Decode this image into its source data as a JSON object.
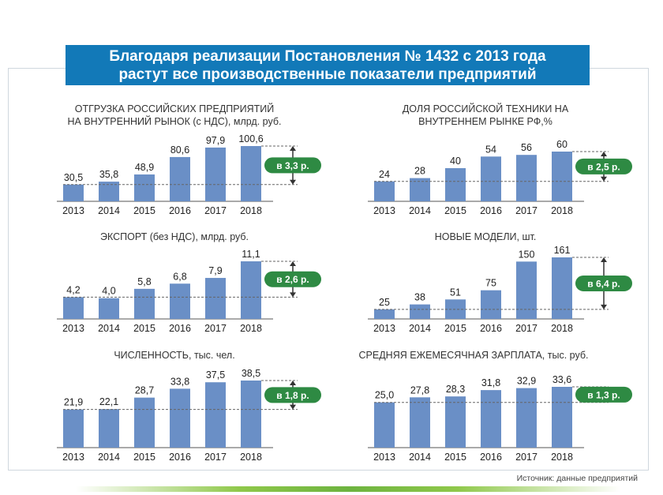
{
  "header": {
    "line1": "Благодаря реализации Постановления № 1432 с 2013 года",
    "line2": "растут все производственные показатели предприятий"
  },
  "source": "Источник: данные предприятий",
  "colors": {
    "bar": "#6a8fc6",
    "badge": "#2e8a43",
    "banner": "#1279b8"
  },
  "chart_data": [
    {
      "type": "bar",
      "title_line1": "ОТГРУЗКА РОССИЙСКИХ ПРЕДПРИЯТИЙ",
      "title_line2": "НА ВНУТРЕННИЙ РЫНОК (с НДС), млрд. руб.",
      "categories": [
        "2013",
        "2014",
        "2015",
        "2016",
        "2017",
        "2018"
      ],
      "values": [
        30.5,
        35.8,
        48.9,
        80.6,
        97.9,
        100.6
      ],
      "labels": [
        "30,5",
        "35,8",
        "48,9",
        "80,6",
        "97,9",
        "100,6"
      ],
      "ylim": [
        0,
        100.6
      ],
      "growth": "в 3,3 р."
    },
    {
      "type": "bar",
      "title_line1": "ДОЛЯ РОССИЙСКОЙ ТЕХНИКИ НА",
      "title_line2": "ВНУТРЕННЕМ РЫНКЕ РФ,%",
      "categories": [
        "2013",
        "2014",
        "2015",
        "2016",
        "2017",
        "2018"
      ],
      "values": [
        24,
        28,
        40,
        54,
        56,
        60
      ],
      "labels": [
        "24",
        "28",
        "40",
        "54",
        "56",
        "60"
      ],
      "ylim": [
        0,
        60
      ],
      "growth": "в 2,5 р."
    },
    {
      "type": "bar",
      "title_line1": "ЭКСПОРТ (без НДС), млрд. руб.",
      "title_line2": "",
      "categories": [
        "2013",
        "2014",
        "2015",
        "2016",
        "2017",
        "2018"
      ],
      "values": [
        4.2,
        4.0,
        5.8,
        6.8,
        7.9,
        11.1
      ],
      "labels": [
        "4,2",
        "4,0",
        "5,8",
        "6,8",
        "7,9",
        "11,1"
      ],
      "ylim": [
        0,
        11.1
      ],
      "growth": "в 2,6 р."
    },
    {
      "type": "bar",
      "title_line1": "НОВЫЕ МОДЕЛИ, шт.",
      "title_line2": "",
      "categories": [
        "2013",
        "2014",
        "2015",
        "2016",
        "2017",
        "2018"
      ],
      "values": [
        25,
        38,
        51,
        75,
        150,
        161
      ],
      "labels": [
        "25",
        "38",
        "51",
        "75",
        "150",
        "161"
      ],
      "ylim": [
        0,
        161
      ],
      "growth": "в 6,4 р."
    },
    {
      "type": "bar",
      "title_line1": "ЧИСЛЕННОСТЬ, тыс. чел.",
      "title_line2": "",
      "categories": [
        "2013",
        "2014",
        "2015",
        "2016",
        "2017",
        "2018"
      ],
      "values": [
        21.9,
        22.1,
        28.7,
        33.8,
        37.5,
        38.5
      ],
      "labels": [
        "21,9",
        "22,1",
        "28,7",
        "33,8",
        "37,5",
        "38,5"
      ],
      "ylim": [
        0,
        38.5
      ],
      "growth": "в 1,8 р."
    },
    {
      "type": "bar",
      "title_line1": "СРЕДНЯЯ ЕЖЕМЕСЯЧНАЯ ЗАРПЛАТА, тыс. руб.",
      "title_line2": "",
      "categories": [
        "2013",
        "2014",
        "2015",
        "2016",
        "2017",
        "2018"
      ],
      "values": [
        25.0,
        27.8,
        28.3,
        31.8,
        32.9,
        33.6
      ],
      "labels": [
        "25,0",
        "27,8",
        "28,3",
        "31,8",
        "32,9",
        "33,6"
      ],
      "ylim": [
        0,
        33.6
      ],
      "growth": "в 1,3 р."
    }
  ]
}
